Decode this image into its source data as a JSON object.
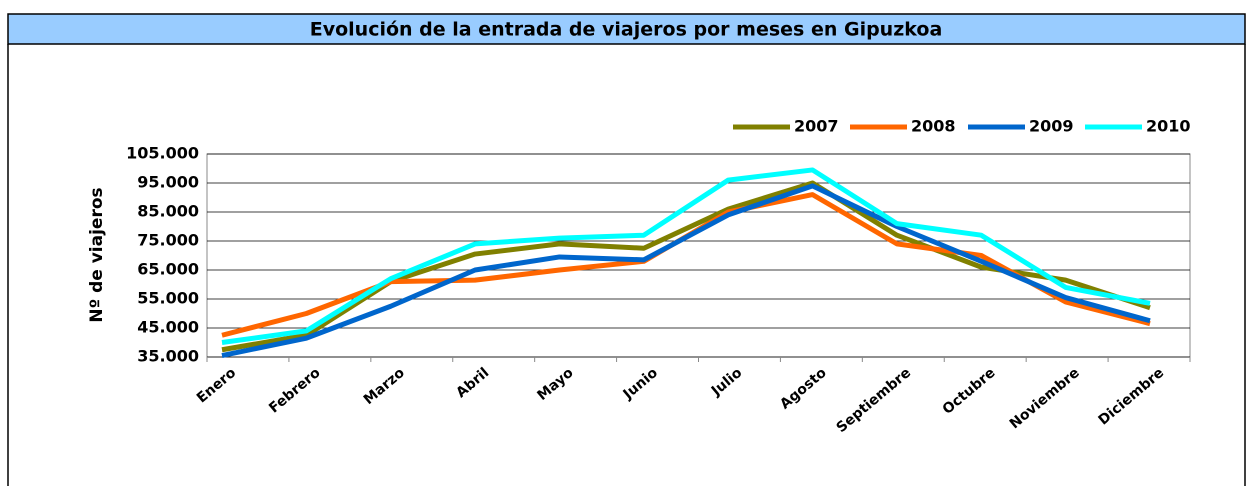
{
  "chart_data": {
    "type": "line",
    "title": "Evolución de la entrada de viajeros por meses en Gipuzkoa",
    "y_label": "Nº de viajeros",
    "categories": [
      "Enero",
      "Febrero",
      "Marzo",
      "Abril",
      "Mayo",
      "Junio",
      "Julio",
      "Agosto",
      "Septiembre",
      "Octubre",
      "Noviembre",
      "Diciembre"
    ],
    "series": [
      {
        "name": "2007",
        "color": "#808000",
        "values": [
          37500,
          42500,
          61000,
          70500,
          74000,
          72500,
          86000,
          95000,
          77000,
          66000,
          61500,
          52000
        ]
      },
      {
        "name": "2008",
        "color": "#ff6600",
        "values": [
          42500,
          50000,
          61000,
          61500,
          65000,
          68000,
          85000,
          91000,
          74000,
          70000,
          54000,
          46500
        ]
      },
      {
        "name": "2009",
        "color": "#0066cc",
        "values": [
          35500,
          41500,
          52500,
          65000,
          69500,
          68500,
          84000,
          94000,
          80000,
          68000,
          55500,
          47500
        ]
      },
      {
        "name": "2010",
        "color": "#00ffff",
        "values": [
          40000,
          44000,
          62000,
          74000,
          76000,
          77000,
          96000,
          99500,
          81000,
          77000,
          59000,
          53500
        ]
      }
    ],
    "ylim": [
      35000,
      105000
    ],
    "yticks": [
      {
        "value": 35000,
        "label": "35.000"
      },
      {
        "value": 45000,
        "label": "45.000"
      },
      {
        "value": 55000,
        "label": "55.000"
      },
      {
        "value": 65000,
        "label": "65.000"
      },
      {
        "value": 75000,
        "label": "75.000"
      },
      {
        "value": 85000,
        "label": "85.000"
      },
      {
        "value": 95000,
        "label": "95.000"
      },
      {
        "value": 105000,
        "label": "105.000"
      }
    ],
    "grid": true,
    "legend": "top-right"
  }
}
